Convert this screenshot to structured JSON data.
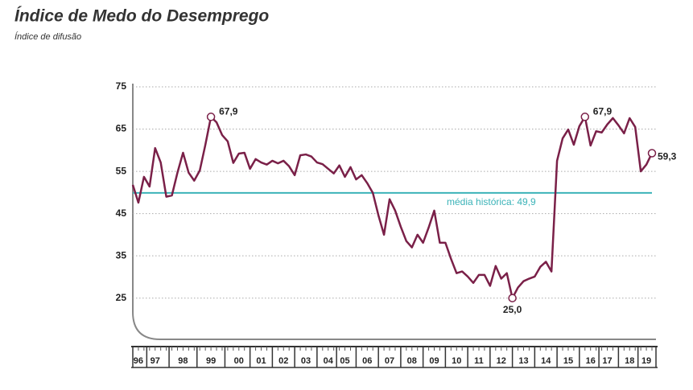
{
  "chart_data": {
    "type": "line",
    "title": "Índice de Medo do Desemprego",
    "subtitle": "Índice de difusão",
    "categories": [
      null,
      "96",
      null,
      null,
      "97",
      null,
      null,
      null,
      null,
      "98",
      null,
      null,
      null,
      null,
      "99",
      null,
      null,
      null,
      null,
      "00",
      null,
      null,
      null,
      "01",
      null,
      null,
      null,
      "02",
      null,
      null,
      null,
      "03",
      null,
      null,
      null,
      "04",
      null,
      null,
      "05",
      null,
      null,
      null,
      "06",
      null,
      null,
      null,
      "07",
      null,
      null,
      null,
      "08",
      null,
      null,
      null,
      "09",
      null,
      null,
      null,
      "10",
      null,
      null,
      null,
      "11",
      null,
      null,
      null,
      "12",
      null,
      null,
      null,
      "13",
      null,
      null,
      null,
      "14",
      null,
      null,
      null,
      "15",
      null,
      null,
      null,
      "16",
      null,
      null,
      "17",
      null,
      null,
      null,
      "18",
      null,
      null,
      "19",
      null
    ],
    "series": [
      {
        "name": "Índice de Medo do Desemprego",
        "color": "#7a2048",
        "values": [
          51.8,
          47.6,
          53.7,
          51.4,
          60.5,
          57.1,
          49.0,
          49.3,
          54.7,
          59.4,
          54.7,
          52.8,
          55.2,
          61.3,
          67.9,
          66.6,
          63.6,
          62.1,
          57.0,
          59.2,
          59.4,
          55.6,
          57.9,
          57.1,
          56.6,
          57.5,
          56.9,
          57.5,
          56.2,
          54.1,
          58.8,
          59.0,
          58.5,
          57.1,
          56.7,
          55.6,
          54.5,
          56.4,
          53.7,
          56.0,
          53.1,
          54.1,
          52.2,
          49.9,
          44.6,
          40.0,
          48.4,
          45.7,
          41.9,
          38.5,
          37.0,
          40.0,
          38.1,
          41.7,
          45.7,
          38.1,
          38.1,
          34.3,
          30.9,
          31.3,
          30.1,
          28.6,
          30.5,
          30.5,
          27.9,
          32.6,
          29.6,
          30.9,
          25.0,
          27.5,
          29.0,
          29.6,
          30.1,
          32.4,
          33.6,
          31.3,
          57.5,
          62.8,
          64.9,
          61.3,
          65.7,
          67.9,
          61.1,
          64.5,
          64.2,
          66.1,
          67.6,
          65.9,
          64.0,
          67.6,
          65.5,
          55.0,
          56.6,
          59.3
        ],
        "value_labels": [
          null,
          null,
          null,
          null,
          null,
          null,
          null,
          null,
          null,
          null,
          null,
          null,
          null,
          null,
          "67,9",
          null,
          null,
          null,
          null,
          null,
          null,
          null,
          null,
          null,
          null,
          null,
          null,
          null,
          null,
          null,
          null,
          null,
          null,
          null,
          null,
          null,
          null,
          null,
          null,
          null,
          null,
          null,
          null,
          null,
          null,
          null,
          null,
          null,
          null,
          null,
          null,
          null,
          null,
          null,
          null,
          null,
          null,
          null,
          null,
          null,
          null,
          null,
          null,
          null,
          null,
          null,
          null,
          null,
          "25,0",
          null,
          null,
          null,
          null,
          null,
          null,
          null,
          null,
          null,
          null,
          null,
          null,
          "67,9",
          null,
          null,
          null,
          null,
          null,
          null,
          null,
          null,
          null,
          null,
          null,
          "59,3"
        ]
      }
    ],
    "reference_line": {
      "value": 49.9,
      "label": "média histórica: 49,9",
      "color": "#3bb3b8"
    },
    "ylim": [
      16,
      75
    ],
    "yticks": [
      25,
      35,
      45,
      55,
      65,
      75
    ],
    "grid": true
  }
}
